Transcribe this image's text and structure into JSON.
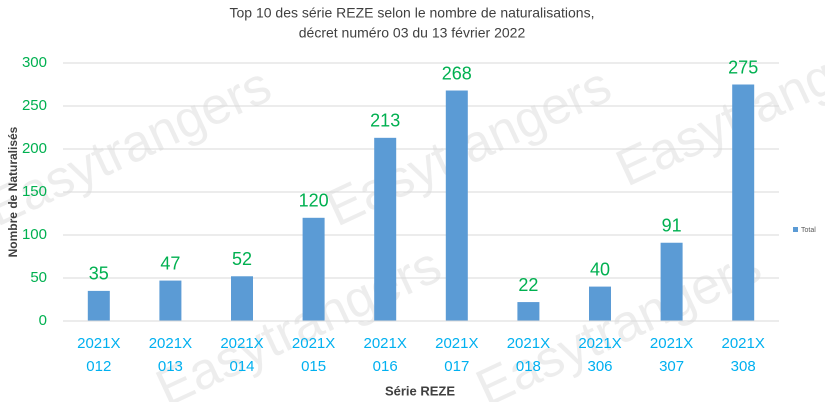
{
  "chart_data": {
    "type": "bar",
    "title": "Top 10 des série REZE selon le nombre de naturalisations,",
    "subtitle": "décret numéro 03 du 13 février 2022",
    "watermark": "Easytrangers",
    "x_label": "Série REZE",
    "y_label": "Nombre de Naturalisés",
    "categories": [
      "2021X 012",
      "2021X 013",
      "2021X 014",
      "2021X 015",
      "2021X 016",
      "2021X 017",
      "2021X 018",
      "2021X 306",
      "2021X 307",
      "2021X 308"
    ],
    "series": [
      {
        "name": "Total",
        "color": "#5b9bd5",
        "values": [
          35,
          47,
          52,
          120,
          213,
          268,
          22,
          40,
          91,
          275
        ]
      }
    ],
    "ylim": [
      0,
      300
    ],
    "yticks": [
      0,
      50,
      100,
      150,
      200,
      250,
      300
    ],
    "grid": true,
    "legend": "right"
  }
}
